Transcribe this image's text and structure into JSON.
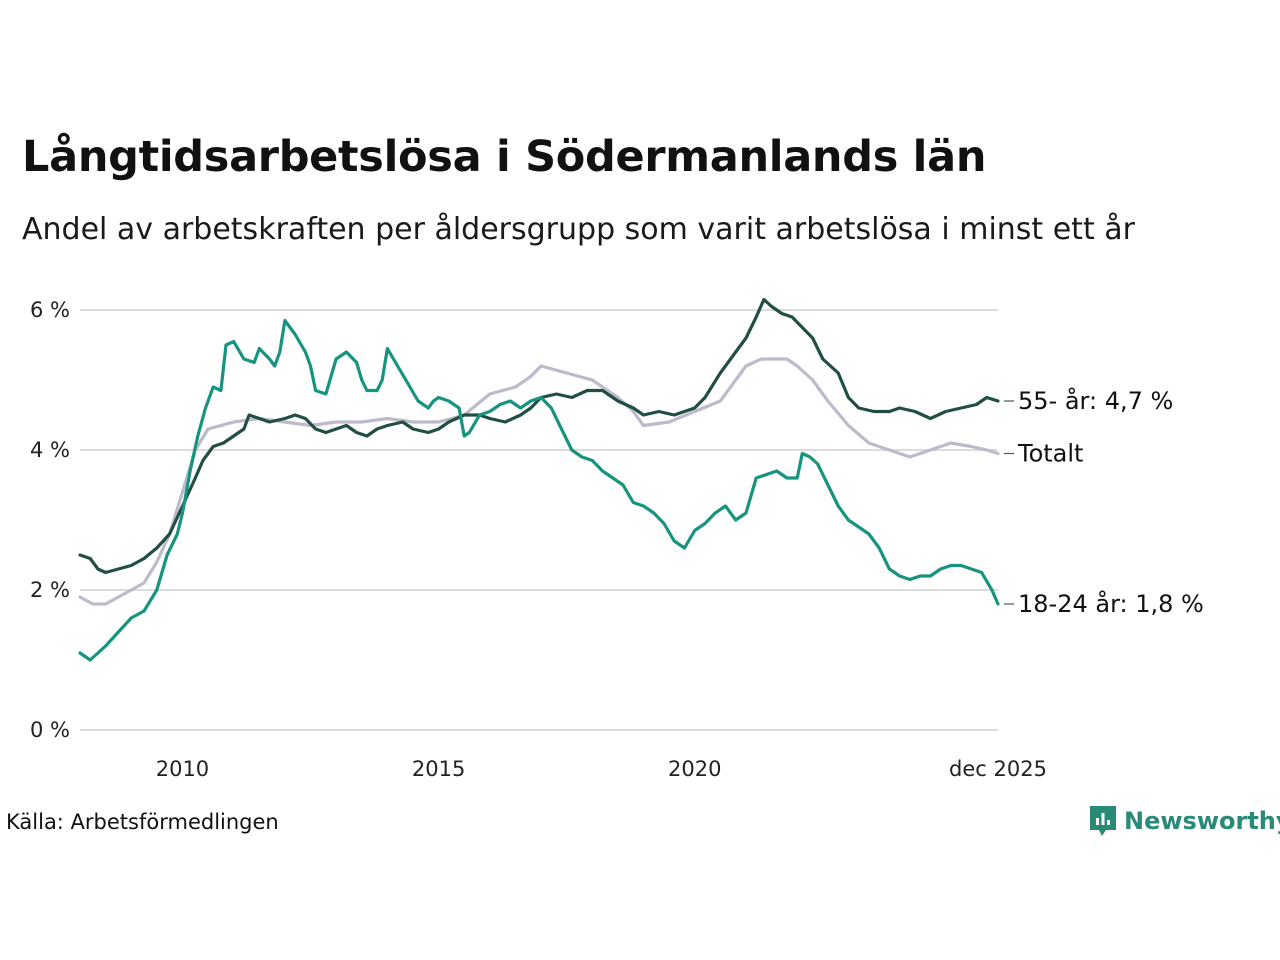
{
  "title": "Långtidsarbetslösa i Södermanlands län",
  "subtitle": "Andel av arbetskraften per åldersgrupp som varit arbetslösa i minst ett år",
  "source": "Källa: Arbetsförmedlingen",
  "brand": {
    "name": "Newsworthy",
    "icon": "newsworthy-logo-icon",
    "color": "#2a8a78"
  },
  "chart_data": {
    "type": "line",
    "x_range": [
      2008.0,
      2025.92
    ],
    "ylim": [
      0,
      6
    ],
    "y_ticks": [
      0,
      2,
      4,
      6
    ],
    "y_tick_labels": [
      "0 %",
      "2 %",
      "4 %",
      "6 %"
    ],
    "x_ticks": [
      2010,
      2015,
      2020,
      2025.92
    ],
    "x_tick_labels": [
      "2010",
      "2015",
      "2020",
      "dec 2025"
    ],
    "grid": true,
    "series": [
      {
        "name": "Totalt",
        "color": "#bdbacb",
        "end_label": "Totalt",
        "points": [
          [
            2008.0,
            1.9
          ],
          [
            2008.25,
            1.8
          ],
          [
            2008.5,
            1.8
          ],
          [
            2008.75,
            1.9
          ],
          [
            2009.0,
            2.0
          ],
          [
            2009.25,
            2.1
          ],
          [
            2009.5,
            2.4
          ],
          [
            2009.75,
            2.8
          ],
          [
            2010.0,
            3.4
          ],
          [
            2010.25,
            4.0
          ],
          [
            2010.5,
            4.3
          ],
          [
            2010.75,
            4.35
          ],
          [
            2011.0,
            4.4
          ],
          [
            2011.5,
            4.45
          ],
          [
            2012.0,
            4.4
          ],
          [
            2012.5,
            4.35
          ],
          [
            2013.0,
            4.4
          ],
          [
            2013.5,
            4.4
          ],
          [
            2014.0,
            4.45
          ],
          [
            2014.5,
            4.4
          ],
          [
            2015.0,
            4.4
          ],
          [
            2015.5,
            4.5
          ],
          [
            2016.0,
            4.8
          ],
          [
            2016.5,
            4.9
          ],
          [
            2016.8,
            5.05
          ],
          [
            2017.0,
            5.2
          ],
          [
            2017.5,
            5.1
          ],
          [
            2018.0,
            5.0
          ],
          [
            2018.5,
            4.75
          ],
          [
            2018.8,
            4.55
          ],
          [
            2019.0,
            4.35
          ],
          [
            2019.5,
            4.4
          ],
          [
            2020.0,
            4.55
          ],
          [
            2020.5,
            4.7
          ],
          [
            2020.8,
            5.0
          ],
          [
            2021.0,
            5.2
          ],
          [
            2021.3,
            5.3
          ],
          [
            2021.8,
            5.3
          ],
          [
            2022.0,
            5.2
          ],
          [
            2022.3,
            5.0
          ],
          [
            2022.6,
            4.7
          ],
          [
            2023.0,
            4.35
          ],
          [
            2023.4,
            4.1
          ],
          [
            2023.8,
            4.0
          ],
          [
            2024.2,
            3.9
          ],
          [
            2024.6,
            4.0
          ],
          [
            2025.0,
            4.1
          ],
          [
            2025.4,
            4.05
          ],
          [
            2025.7,
            4.0
          ],
          [
            2025.92,
            3.95
          ]
        ]
      },
      {
        "name": "55- år",
        "color": "#214e45",
        "end_label": "55- år: 4,7 %",
        "points": [
          [
            2008.0,
            2.5
          ],
          [
            2008.2,
            2.45
          ],
          [
            2008.35,
            2.3
          ],
          [
            2008.5,
            2.25
          ],
          [
            2008.75,
            2.3
          ],
          [
            2009.0,
            2.35
          ],
          [
            2009.25,
            2.45
          ],
          [
            2009.5,
            2.6
          ],
          [
            2009.75,
            2.8
          ],
          [
            2010.0,
            3.2
          ],
          [
            2010.25,
            3.6
          ],
          [
            2010.4,
            3.85
          ],
          [
            2010.6,
            4.05
          ],
          [
            2010.8,
            4.1
          ],
          [
            2011.0,
            4.2
          ],
          [
            2011.2,
            4.3
          ],
          [
            2011.3,
            4.5
          ],
          [
            2011.5,
            4.45
          ],
          [
            2011.7,
            4.4
          ],
          [
            2012.0,
            4.45
          ],
          [
            2012.2,
            4.5
          ],
          [
            2012.4,
            4.45
          ],
          [
            2012.6,
            4.3
          ],
          [
            2012.8,
            4.25
          ],
          [
            2013.0,
            4.3
          ],
          [
            2013.2,
            4.35
          ],
          [
            2013.4,
            4.25
          ],
          [
            2013.6,
            4.2
          ],
          [
            2013.8,
            4.3
          ],
          [
            2014.0,
            4.35
          ],
          [
            2014.3,
            4.4
          ],
          [
            2014.5,
            4.3
          ],
          [
            2014.8,
            4.25
          ],
          [
            2015.0,
            4.3
          ],
          [
            2015.2,
            4.4
          ],
          [
            2015.5,
            4.5
          ],
          [
            2015.8,
            4.5
          ],
          [
            2016.0,
            4.45
          ],
          [
            2016.3,
            4.4
          ],
          [
            2016.6,
            4.5
          ],
          [
            2016.8,
            4.6
          ],
          [
            2017.0,
            4.75
          ],
          [
            2017.3,
            4.8
          ],
          [
            2017.6,
            4.75
          ],
          [
            2017.9,
            4.85
          ],
          [
            2018.2,
            4.85
          ],
          [
            2018.5,
            4.7
          ],
          [
            2018.8,
            4.6
          ],
          [
            2019.0,
            4.5
          ],
          [
            2019.3,
            4.55
          ],
          [
            2019.6,
            4.5
          ],
          [
            2020.0,
            4.6
          ],
          [
            2020.2,
            4.75
          ],
          [
            2020.5,
            5.1
          ],
          [
            2020.7,
            5.3
          ],
          [
            2021.0,
            5.6
          ],
          [
            2021.2,
            5.9
          ],
          [
            2021.35,
            6.15
          ],
          [
            2021.5,
            6.05
          ],
          [
            2021.7,
            5.95
          ],
          [
            2021.9,
            5.9
          ],
          [
            2022.1,
            5.75
          ],
          [
            2022.3,
            5.6
          ],
          [
            2022.5,
            5.3
          ],
          [
            2022.8,
            5.1
          ],
          [
            2023.0,
            4.75
          ],
          [
            2023.2,
            4.6
          ],
          [
            2023.5,
            4.55
          ],
          [
            2023.8,
            4.55
          ],
          [
            2024.0,
            4.6
          ],
          [
            2024.3,
            4.55
          ],
          [
            2024.6,
            4.45
          ],
          [
            2024.9,
            4.55
          ],
          [
            2025.2,
            4.6
          ],
          [
            2025.5,
            4.65
          ],
          [
            2025.7,
            4.75
          ],
          [
            2025.92,
            4.7
          ]
        ]
      },
      {
        "name": "18-24 år",
        "color": "#16947f",
        "end_label": "18-24 år: 1,8 %",
        "points": [
          [
            2008.0,
            1.1
          ],
          [
            2008.1,
            1.05
          ],
          [
            2008.2,
            1.0
          ],
          [
            2008.35,
            1.1
          ],
          [
            2008.5,
            1.2
          ],
          [
            2008.75,
            1.4
          ],
          [
            2009.0,
            1.6
          ],
          [
            2009.25,
            1.7
          ],
          [
            2009.5,
            2.0
          ],
          [
            2009.7,
            2.5
          ],
          [
            2009.9,
            2.8
          ],
          [
            2010.0,
            3.1
          ],
          [
            2010.15,
            3.7
          ],
          [
            2010.3,
            4.2
          ],
          [
            2010.45,
            4.6
          ],
          [
            2010.6,
            4.9
          ],
          [
            2010.75,
            4.85
          ],
          [
            2010.85,
            5.5
          ],
          [
            2011.0,
            5.55
          ],
          [
            2011.2,
            5.3
          ],
          [
            2011.4,
            5.25
          ],
          [
            2011.5,
            5.45
          ],
          [
            2011.7,
            5.3
          ],
          [
            2011.8,
            5.2
          ],
          [
            2011.9,
            5.4
          ],
          [
            2012.0,
            5.85
          ],
          [
            2012.1,
            5.75
          ],
          [
            2012.2,
            5.65
          ],
          [
            2012.4,
            5.4
          ],
          [
            2012.5,
            5.2
          ],
          [
            2012.6,
            4.85
          ],
          [
            2012.8,
            4.8
          ],
          [
            2013.0,
            5.3
          ],
          [
            2013.2,
            5.4
          ],
          [
            2013.4,
            5.25
          ],
          [
            2013.5,
            5.0
          ],
          [
            2013.6,
            4.85
          ],
          [
            2013.8,
            4.85
          ],
          [
            2013.9,
            5.0
          ],
          [
            2014.0,
            5.45
          ],
          [
            2014.2,
            5.2
          ],
          [
            2014.4,
            4.95
          ],
          [
            2014.6,
            4.7
          ],
          [
            2014.8,
            4.6
          ],
          [
            2014.9,
            4.7
          ],
          [
            2015.0,
            4.75
          ],
          [
            2015.2,
            4.7
          ],
          [
            2015.4,
            4.6
          ],
          [
            2015.5,
            4.2
          ],
          [
            2015.6,
            4.25
          ],
          [
            2015.8,
            4.5
          ],
          [
            2016.0,
            4.55
          ],
          [
            2016.2,
            4.65
          ],
          [
            2016.4,
            4.7
          ],
          [
            2016.6,
            4.6
          ],
          [
            2016.8,
            4.7
          ],
          [
            2017.0,
            4.75
          ],
          [
            2017.2,
            4.6
          ],
          [
            2017.4,
            4.3
          ],
          [
            2017.6,
            4.0
          ],
          [
            2017.8,
            3.9
          ],
          [
            2018.0,
            3.85
          ],
          [
            2018.2,
            3.7
          ],
          [
            2018.4,
            3.6
          ],
          [
            2018.6,
            3.5
          ],
          [
            2018.8,
            3.25
          ],
          [
            2019.0,
            3.2
          ],
          [
            2019.2,
            3.1
          ],
          [
            2019.4,
            2.95
          ],
          [
            2019.6,
            2.7
          ],
          [
            2019.8,
            2.6
          ],
          [
            2020.0,
            2.85
          ],
          [
            2020.2,
            2.95
          ],
          [
            2020.4,
            3.1
          ],
          [
            2020.6,
            3.2
          ],
          [
            2020.8,
            3.0
          ],
          [
            2021.0,
            3.1
          ],
          [
            2021.2,
            3.6
          ],
          [
            2021.4,
            3.65
          ],
          [
            2021.6,
            3.7
          ],
          [
            2021.8,
            3.6
          ],
          [
            2022.0,
            3.6
          ],
          [
            2022.1,
            3.95
          ],
          [
            2022.25,
            3.9
          ],
          [
            2022.4,
            3.8
          ],
          [
            2022.6,
            3.5
          ],
          [
            2022.8,
            3.2
          ],
          [
            2023.0,
            3.0
          ],
          [
            2023.2,
            2.9
          ],
          [
            2023.4,
            2.8
          ],
          [
            2023.6,
            2.6
          ],
          [
            2023.8,
            2.3
          ],
          [
            2024.0,
            2.2
          ],
          [
            2024.2,
            2.15
          ],
          [
            2024.4,
            2.2
          ],
          [
            2024.6,
            2.2
          ],
          [
            2024.8,
            2.3
          ],
          [
            2025.0,
            2.35
          ],
          [
            2025.2,
            2.35
          ],
          [
            2025.4,
            2.3
          ],
          [
            2025.6,
            2.25
          ],
          [
            2025.8,
            2.0
          ],
          [
            2025.92,
            1.8
          ]
        ]
      }
    ]
  }
}
